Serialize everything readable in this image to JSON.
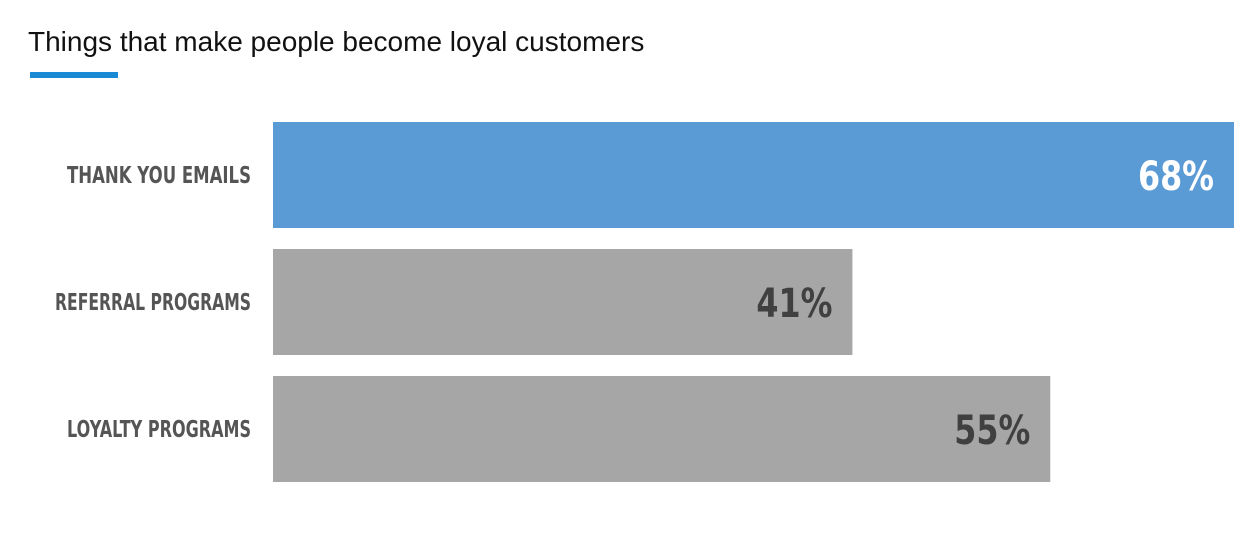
{
  "chart_data": {
    "type": "bar",
    "orientation": "horizontal",
    "title": "Things that make people become loyal customers",
    "categories": [
      "THANK YOU EMAILS",
      "REFERRAL PROGRAMS",
      "LOYALTY PROGRAMS"
    ],
    "values": [
      68,
      41,
      55
    ],
    "value_labels": [
      "68%",
      "41%",
      "55%"
    ],
    "unit": "%",
    "xlim": [
      0,
      68
    ],
    "grid": false,
    "legend": "none"
  },
  "colors": {
    "title_accent": "#1a8ad4",
    "highlight_bar": "#5b9bd5",
    "bar": "#a6a6a6",
    "highlight_value_text": "#ffffff",
    "value_text": "#404040",
    "category_text": "#555555"
  }
}
